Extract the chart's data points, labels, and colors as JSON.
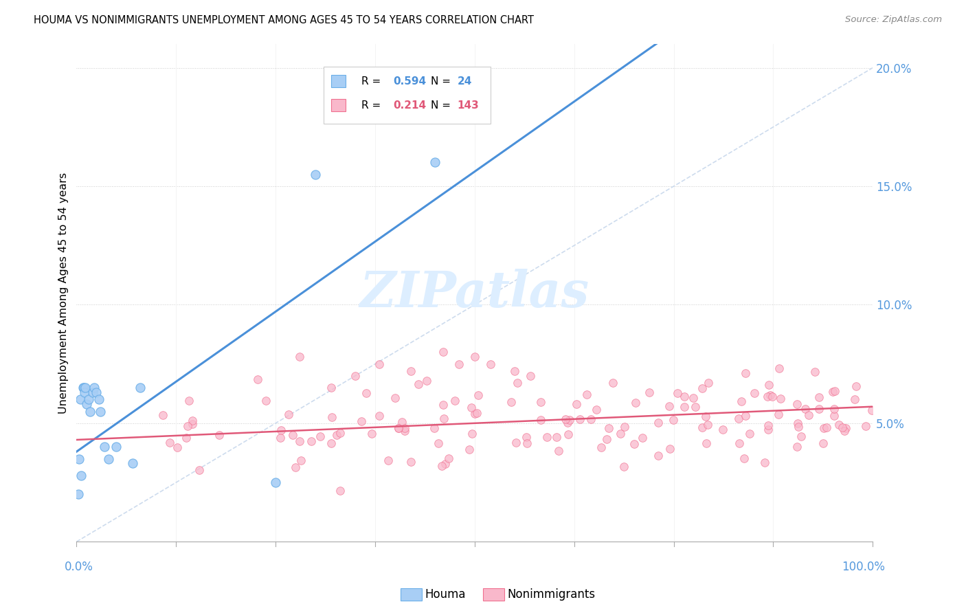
{
  "title": "HOUMA VS NONIMMIGRANTS UNEMPLOYMENT AMONG AGES 45 TO 54 YEARS CORRELATION CHART",
  "source": "Source: ZipAtlas.com",
  "ylabel": "Unemployment Among Ages 45 to 54 years",
  "houma_r": 0.594,
  "houma_n": 24,
  "nonimm_r": 0.214,
  "nonimm_n": 143,
  "houma_color": "#a8cef5",
  "nonimm_color": "#f9b8cb",
  "houma_edge_color": "#6aaee8",
  "nonimm_edge_color": "#f07090",
  "houma_line_color": "#4a90d9",
  "nonimm_line_color": "#e05878",
  "diagonal_color": "#c8d8ec",
  "watermark_color": "#ddeeff",
  "ytick_color": "#5599dd",
  "xlabel_color": "#5599dd"
}
